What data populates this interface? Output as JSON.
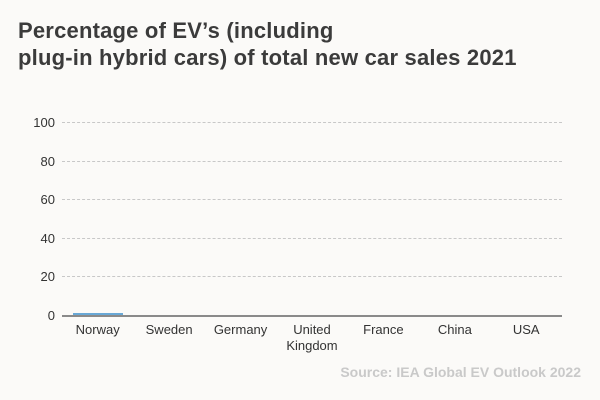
{
  "title": {
    "line1": "Percentage of EV’s (including",
    "line2": "plug-in hybrid cars) of total new car sales 2021"
  },
  "source": "Source: IEA Global EV Outlook 2022",
  "colors": {
    "background": "#fbfaf8",
    "bar": "#69a8d6",
    "grid": "#c8c8c8",
    "axis": "#8a8a8a",
    "title_text": "#3b3b3b",
    "label_text": "#333333",
    "source_text": "#c9c9c9"
  },
  "chart_data": {
    "type": "bar",
    "title": "Percentage of EV’s (including plug-in hybrid cars) of total new car sales 2021",
    "categories": [
      "Norway",
      "Sweden",
      "Germany",
      "United Kingdom",
      "France",
      "China",
      "USA"
    ],
    "values": [
      0.8,
      0,
      0,
      0,
      0,
      0,
      0
    ],
    "xlabel": "",
    "ylabel": "",
    "ylim": [
      0,
      100
    ],
    "yticks": [
      0,
      20,
      40,
      60,
      80,
      100
    ],
    "grid": "horizontal-dashed",
    "legend": "none",
    "render_note": "animation start frame: all bars at near-zero height, only Norway shows a thin sliver above the baseline"
  }
}
